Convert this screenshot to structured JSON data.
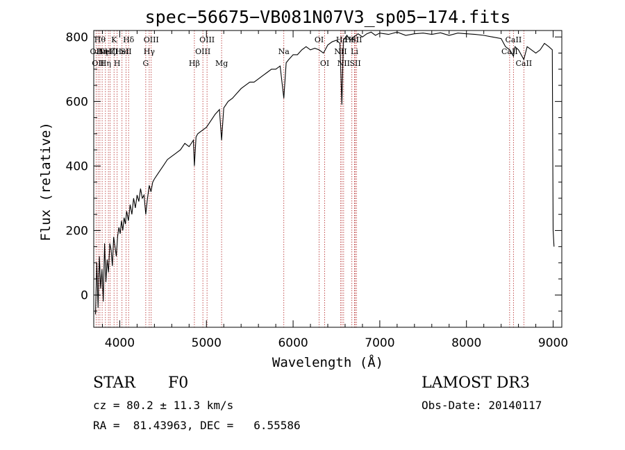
{
  "chart_data": {
    "type": "line",
    "title": "spec−56675−VB081N07V3_sp05−174.fits",
    "xlabel": "Wavelength (Å)",
    "ylabel": "Flux (relative)",
    "xlim": [
      3700,
      9100
    ],
    "ylim": [
      -100,
      820
    ],
    "x_ticks": [
      4000,
      5000,
      6000,
      7000,
      8000,
      9000
    ],
    "y_ticks": [
      0,
      200,
      400,
      600,
      800
    ],
    "x_tick_labels": [
      "4000",
      "5000",
      "6000",
      "7000",
      "8000",
      "9000"
    ],
    "y_tick_labels": [
      "0",
      "200",
      "400",
      "600",
      "800"
    ],
    "series": [
      {
        "name": "flux",
        "x": [
          3720,
          3735,
          3750,
          3765,
          3780,
          3795,
          3810,
          3825,
          3840,
          3855,
          3870,
          3885,
          3900,
          3915,
          3930,
          3945,
          3960,
          3975,
          3990,
          4005,
          4020,
          4035,
          4050,
          4065,
          4080,
          4100,
          4120,
          4140,
          4160,
          4180,
          4200,
          4220,
          4240,
          4260,
          4280,
          4300,
          4320,
          4340,
          4360,
          4380,
          4400,
          4450,
          4500,
          4550,
          4600,
          4650,
          4700,
          4750,
          4800,
          4850,
          4861,
          4880,
          4900,
          4950,
          5000,
          5050,
          5100,
          5150,
          5175,
          5200,
          5250,
          5300,
          5350,
          5400,
          5450,
          5500,
          5550,
          5600,
          5650,
          5700,
          5750,
          5800,
          5850,
          5893,
          5920,
          5950,
          6000,
          6050,
          6100,
          6150,
          6200,
          6250,
          6300,
          6350,
          6400,
          6450,
          6500,
          6540,
          6563,
          6580,
          6620,
          6660,
          6700,
          6750,
          6800,
          6850,
          6900,
          6950,
          7000,
          7100,
          7200,
          7300,
          7400,
          7500,
          7600,
          7700,
          7800,
          7900,
          8000,
          8100,
          8200,
          8300,
          8400,
          8450,
          8500,
          8542,
          8560,
          8600,
          8662,
          8700,
          8750,
          8800,
          8850,
          8900,
          8950,
          8990,
          9000,
          9010
        ],
        "y": [
          -60,
          100,
          -40,
          120,
          20,
          80,
          -20,
          160,
          40,
          110,
          70,
          160,
          140,
          90,
          180,
          150,
          120,
          180,
          210,
          190,
          230,
          200,
          240,
          220,
          260,
          230,
          280,
          250,
          300,
          270,
          310,
          290,
          330,
          300,
          310,
          250,
          300,
          340,
          320,
          350,
          360,
          380,
          400,
          420,
          430,
          440,
          450,
          470,
          460,
          480,
          400,
          490,
          500,
          510,
          520,
          540,
          560,
          575,
          480,
          580,
          600,
          610,
          625,
          640,
          650,
          660,
          660,
          670,
          680,
          690,
          700,
          700,
          710,
          610,
          720,
          730,
          745,
          745,
          760,
          770,
          760,
          765,
          760,
          750,
          775,
          785,
          790,
          780,
          590,
          790,
          805,
          790,
          800,
          810,
          800,
          810,
          815,
          805,
          812,
          808,
          815,
          805,
          810,
          812,
          808,
          813,
          805,
          812,
          810,
          808,
          805,
          800,
          795,
          770,
          760,
          740,
          770,
          760,
          730,
          770,
          760,
          750,
          760,
          780,
          770,
          760,
          200,
          150
        ]
      }
    ],
    "lines": [
      {
        "x": 3727,
        "label": "OII",
        "row": 1
      },
      {
        "x": 3750,
        "label": "OII",
        "row": 2
      },
      {
        "x": 3771,
        "label": "Hθ",
        "row": 0
      },
      {
        "x": 3797,
        "label": "Hη",
        "row": 1
      },
      {
        "x": 3835,
        "label": "Hη",
        "row": 2
      },
      {
        "x": 3869,
        "label": "NeIII",
        "row": 1
      },
      {
        "x": 3889,
        "label": "Hζ",
        "row": 1
      },
      {
        "x": 3934,
        "label": "K",
        "row": 0
      },
      {
        "x": 3970,
        "label": "H",
        "row": 2
      },
      {
        "x": 4026,
        "label": "HeI",
        "row": 1
      },
      {
        "x": 4072,
        "label": "SII",
        "row": 1
      },
      {
        "x": 4102,
        "label": "Hδ",
        "row": 0
      },
      {
        "x": 4300,
        "label": "G",
        "row": 2
      },
      {
        "x": 4340,
        "label": "Hγ",
        "row": 1
      },
      {
        "x": 4363,
        "label": "OIII",
        "row": 0
      },
      {
        "x": 4861,
        "label": "Hβ",
        "row": 2
      },
      {
        "x": 4959,
        "label": "OIII",
        "row": 1
      },
      {
        "x": 5007,
        "label": "OIII",
        "row": 0
      },
      {
        "x": 5175,
        "label": "Mg",
        "row": 2
      },
      {
        "x": 5893,
        "label": "Na",
        "row": 1
      },
      {
        "x": 6300,
        "label": "OI",
        "row": 0
      },
      {
        "x": 6364,
        "label": "OI",
        "row": 2
      },
      {
        "x": 6548,
        "label": "NII",
        "row": 1
      },
      {
        "x": 6563,
        "label": "Hα",
        "row": 0
      },
      {
        "x": 6583,
        "label": "NII",
        "row": 2
      },
      {
        "x": 6678,
        "label": "HeI",
        "row": 0
      },
      {
        "x": 6708,
        "label": "Li",
        "row": 1
      },
      {
        "x": 6717,
        "label": "SII",
        "row": 2
      },
      {
        "x": 6731,
        "label": "SII",
        "row": 0
      },
      {
        "x": 8498,
        "label": "CaII",
        "row": 1
      },
      {
        "x": 8542,
        "label": "CaII",
        "row": 0
      },
      {
        "x": 8662,
        "label": "CaII",
        "row": 2
      }
    ]
  },
  "info": {
    "class_label": "STAR",
    "subclass_label": "F0",
    "survey_label": "LAMOST DR3",
    "cz_label": "cz = 80.2 ± 11.3 km/s",
    "obs_date_label": "Obs-Date: 20140117",
    "radec_label": "RA =  81.43963, DEC =   6.55586"
  }
}
